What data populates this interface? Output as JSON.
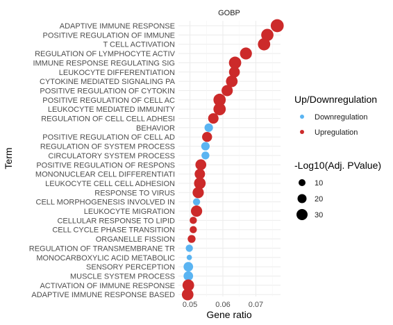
{
  "chart_data": {
    "type": "scatter",
    "facet": "GOBP",
    "xlabel": "Gene ratio",
    "ylabel": "Term",
    "xlim": [
      0.0465,
      0.0775
    ],
    "xticks": [
      "0.05",
      "0.06",
      "0.07"
    ],
    "xtick_values": [
      0.05,
      0.06,
      0.07
    ],
    "grid": true,
    "legend_position": "right",
    "colors": {
      "Downregulation": "#5AB4F2",
      "Upregulation": "#CC2A2A"
    },
    "color_legend": {
      "title": "Up/Downregulation",
      "labels": [
        "Downregulation",
        "Upregulation"
      ]
    },
    "size_legend": {
      "title": "-Log10(Adj. PValue)",
      "values": [
        10,
        20,
        30
      ],
      "labels": [
        "10",
        "20",
        "30"
      ]
    },
    "points": [
      {
        "term": "ADAPTIVE IMMUNE RESPONSE",
        "x": 0.0765,
        "direction": "Upregulation",
        "size": 32
      },
      {
        "term": "POSITIVE REGULATION OF IMMUNE ",
        "x": 0.0735,
        "direction": "Upregulation",
        "size": 28
      },
      {
        "term": "T CELL ACTIVATION",
        "x": 0.0725,
        "direction": "Upregulation",
        "size": 28
      },
      {
        "term": "REGULATION OF LYMPHOCYTE ACTIV",
        "x": 0.067,
        "direction": "Upregulation",
        "size": 26
      },
      {
        "term": "IMMUNE RESPONSE REGULATING SIG",
        "x": 0.0637,
        "direction": "Upregulation",
        "size": 28
      },
      {
        "term": "LEUKOCYTE DIFFERENTIATION",
        "x": 0.0635,
        "direction": "Upregulation",
        "size": 20
      },
      {
        "term": "CYTOKINE MEDIATED SIGNALING PA",
        "x": 0.0627,
        "direction": "Upregulation",
        "size": 24
      },
      {
        "term": "POSITIVE REGULATION OF CYTOKIN",
        "x": 0.0613,
        "direction": "Upregulation",
        "size": 22
      },
      {
        "term": "POSITIVE REGULATION OF CELL AC",
        "x": 0.059,
        "direction": "Upregulation",
        "size": 28
      },
      {
        "term": "LEUKOCYTE MEDIATED IMMUNITY",
        "x": 0.059,
        "direction": "Upregulation",
        "size": 28
      },
      {
        "term": "REGULATION OF CELL CELL ADHESI",
        "x": 0.0571,
        "direction": "Upregulation",
        "size": 18
      },
      {
        "term": "BEHAVIOR",
        "x": 0.0557,
        "direction": "Downregulation",
        "size": 10
      },
      {
        "term": "POSITIVE REGULATION OF CELL AD",
        "x": 0.0552,
        "direction": "Upregulation",
        "size": 16
      },
      {
        "term": "REGULATION OF SYSTEM PROCESS",
        "x": 0.0547,
        "direction": "Downregulation",
        "size": 10
      },
      {
        "term": "CIRCULATORY SYSTEM PROCESS",
        "x": 0.0547,
        "direction": "Downregulation",
        "size": 8
      },
      {
        "term": "POSITIVE REGULATION OF RESPONS",
        "x": 0.0533,
        "direction": "Upregulation",
        "size": 20
      },
      {
        "term": "MONONUCLEAR CELL DIFFERENTIATI",
        "x": 0.053,
        "direction": "Upregulation",
        "size": 18
      },
      {
        "term": "LEUKOCYTE CELL CELL ADHESION",
        "x": 0.053,
        "direction": "Upregulation",
        "size": 24
      },
      {
        "term": "RESPONSE TO VIRUS",
        "x": 0.0525,
        "direction": "Upregulation",
        "size": 22
      },
      {
        "term": "CELL MORPHOGENESIS INVOLVED IN",
        "x": 0.052,
        "direction": "Downregulation",
        "size": 6
      },
      {
        "term": "LEUKOCYTE MIGRATION",
        "x": 0.052,
        "direction": "Upregulation",
        "size": 22
      },
      {
        "term": "CELLULAR RESPONSE TO LIPID",
        "x": 0.051,
        "direction": "Upregulation",
        "size": 6
      },
      {
        "term": "CELL CYCLE PHASE TRANSITION",
        "x": 0.051,
        "direction": "Upregulation",
        "size": 6
      },
      {
        "term": "ORGANELLE FISSION",
        "x": 0.0505,
        "direction": "Upregulation",
        "size": 8
      },
      {
        "term": "REGULATION OF TRANSMEMBRANE TR",
        "x": 0.0498,
        "direction": "Downregulation",
        "size": 6
      },
      {
        "term": "MONOCARBOXYLIC ACID METABOLIC ",
        "x": 0.0498,
        "direction": "Downregulation",
        "size": 2
      },
      {
        "term": "SENSORY PERCEPTION",
        "x": 0.0495,
        "direction": "Downregulation",
        "size": 14
      },
      {
        "term": "MUSCLE SYSTEM PROCESS",
        "x": 0.0495,
        "direction": "Downregulation",
        "size": 14
      },
      {
        "term": "ACTIVATION OF IMMUNE RESPONSE",
        "x": 0.0495,
        "direction": "Upregulation",
        "size": 24
      },
      {
        "term": "ADAPTIVE IMMUNE RESPONSE BASED",
        "x": 0.0493,
        "direction": "Upregulation",
        "size": 24
      }
    ]
  }
}
